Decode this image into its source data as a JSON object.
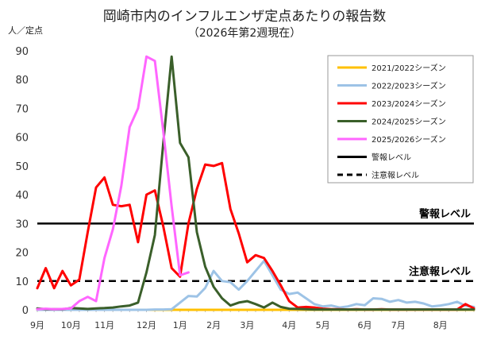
{
  "chart_data": {
    "type": "line",
    "title": "岡崎市内のインフルエンザ定点あたりの報告数",
    "subtitle": "（2026年第2週現在）",
    "ylabel": "人／定点",
    "ylim": [
      0,
      90
    ],
    "yticks": [
      0,
      10,
      20,
      30,
      40,
      50,
      60,
      70,
      80,
      90
    ],
    "grid": false,
    "legend_position": "top-right",
    "x_count": 53,
    "x_tick_labels": [
      {
        "label": "9月",
        "index": 0
      },
      {
        "label": "10月",
        "index": 4
      },
      {
        "label": "11月",
        "index": 8
      },
      {
        "label": "12月",
        "index": 13
      },
      {
        "label": "1月",
        "index": 17
      },
      {
        "label": "2月",
        "index": 21
      },
      {
        "label": "3月",
        "index": 25
      },
      {
        "label": "4月",
        "index": 30
      },
      {
        "label": "5月",
        "index": 34
      },
      {
        "label": "6月",
        "index": 39
      },
      {
        "label": "7月",
        "index": 43
      },
      {
        "label": "8月",
        "index": 48
      }
    ],
    "series": [
      {
        "name": "2021/2022シーズン",
        "color": "#FFC000",
        "dash": "solid",
        "values": [
          0,
          0,
          0,
          0,
          0,
          0,
          0,
          0,
          0,
          0,
          0,
          0,
          0,
          0,
          0,
          0,
          0,
          0,
          0,
          0,
          0,
          0,
          0,
          0,
          0,
          0,
          0,
          0,
          0,
          0,
          0,
          0,
          0,
          0,
          0,
          0,
          0,
          0,
          0,
          0,
          0,
          0,
          0,
          0,
          0,
          0,
          0,
          0,
          0,
          0,
          0,
          0,
          0
        ]
      },
      {
        "name": "2022/2023シーズン",
        "color": "#9DC3E6",
        "dash": "solid",
        "values": [
          0,
          0,
          0,
          0,
          0,
          0,
          0,
          0,
          0,
          0,
          0,
          0,
          0,
          0,
          0.1,
          0.1,
          0.2,
          2.5,
          4.8,
          4.6,
          7.6,
          13.5,
          10,
          9.6,
          7,
          10,
          13.5,
          17,
          12,
          7,
          5.5,
          6,
          4,
          2,
          1.2,
          1.5,
          0.8,
          1.2,
          2,
          1.6,
          4,
          3.8,
          2.8,
          3.4,
          2.5,
          2.8,
          2.2,
          1.2,
          1.5,
          2,
          2.8,
          1.4,
          1
        ]
      },
      {
        "name": "2023/2024シーズン",
        "color": "#FF0000",
        "dash": "solid",
        "values": [
          7.5,
          14.5,
          7.5,
          13.5,
          8.5,
          10.5,
          27,
          42.5,
          46,
          36.5,
          36,
          36.5,
          23.5,
          40,
          41.5,
          29,
          14.5,
          11.5,
          30,
          42,
          50.5,
          50,
          51,
          35,
          26.5,
          16.5,
          19,
          18,
          13.5,
          8.5,
          3,
          0.8,
          1,
          0.8,
          0.4,
          0.2,
          0.2,
          0.1,
          0.2,
          0.1,
          0.1,
          0.2,
          0.1,
          0.1,
          0.1,
          0.1,
          0.1,
          0.1,
          0.1,
          0.1,
          0.1,
          2,
          0.5
        ]
      },
      {
        "name": "2024/2025シーズン",
        "color": "#3A5F2A",
        "dash": "solid",
        "values": [
          0.5,
          0.2,
          0.2,
          0.2,
          0.6,
          0.5,
          0.3,
          0.5,
          0.6,
          0.8,
          1.2,
          1.5,
          2.5,
          13,
          26,
          58,
          88,
          58,
          53,
          27,
          15,
          8,
          4,
          1.5,
          2.5,
          3,
          2,
          0.8,
          2.5,
          1,
          0.4,
          0.3,
          0.2,
          0.1,
          0.1,
          0.1,
          0.1,
          0.1,
          0.1,
          0.1,
          0.1,
          0.1,
          0.1,
          0.1,
          0.1,
          0.1,
          0.1,
          0.1,
          0.1,
          0.1,
          0.1,
          0.1,
          0.1
        ]
      },
      {
        "name": "2025/2026シーズン",
        "color": "#FF66FF",
        "dash": "solid",
        "values": [
          0.2,
          0.4,
          0.2,
          0.3,
          0.5,
          3,
          4.5,
          3,
          18,
          28,
          43,
          63.5,
          70,
          88,
          86.5,
          62,
          36,
          12,
          13
        ]
      },
      {
        "name": "警報レベル",
        "color": "#000000",
        "dash": "solid",
        "constant": 30
      },
      {
        "name": "注意報レベル",
        "color": "#000000",
        "dash": "dashed",
        "constant": 10
      }
    ],
    "annotations": [
      {
        "text": "警報レベル",
        "y": 30
      },
      {
        "text": "注意報レベル",
        "y": 10
      }
    ]
  }
}
